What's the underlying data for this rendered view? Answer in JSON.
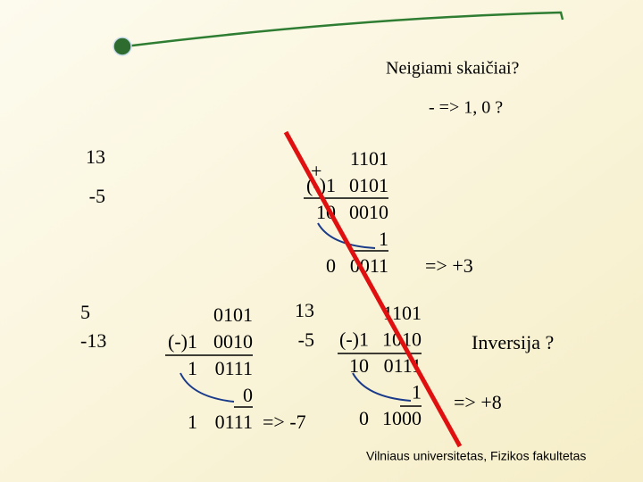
{
  "header": {
    "title": "Neigiami skaičiai?",
    "subtitle": "- => 1, 0 ?"
  },
  "left_top": [
    "13",
    "-5"
  ],
  "left_bottom": [
    "5",
    "-13"
  ],
  "calc1": {
    "plus": "+",
    "lines": [
      {
        "bits": "1101"
      },
      {
        "carry": "(-)1",
        "bits": "0101"
      },
      {
        "carry": "10",
        "bits": "0010"
      },
      {
        "bits": "1"
      },
      {
        "carry": "0",
        "bits": "0011"
      }
    ],
    "result": "=> +3"
  },
  "calc2": {
    "lines": [
      {
        "bits": "0101"
      },
      {
        "carry": "(-)1",
        "bits": "0010"
      },
      {
        "carry": "1",
        "bits": "0111"
      },
      {
        "bits": "0"
      },
      {
        "carry": "1",
        "bits": "0111"
      }
    ],
    "result": "=> -7"
  },
  "calc3": {
    "operands": [
      "13",
      "-5"
    ],
    "lines": [
      {
        "bits": "1101"
      },
      {
        "carry": "(-)1",
        "bits": "1010"
      },
      {
        "carry": "10",
        "bits": "0111"
      },
      {
        "bits": "1"
      },
      {
        "carry": "0",
        "bits": "1000"
      }
    ],
    "note": "Inversija ?",
    "result": "=> +8"
  },
  "footer": "Vilniaus universitetas, Fizikos fakultetas"
}
